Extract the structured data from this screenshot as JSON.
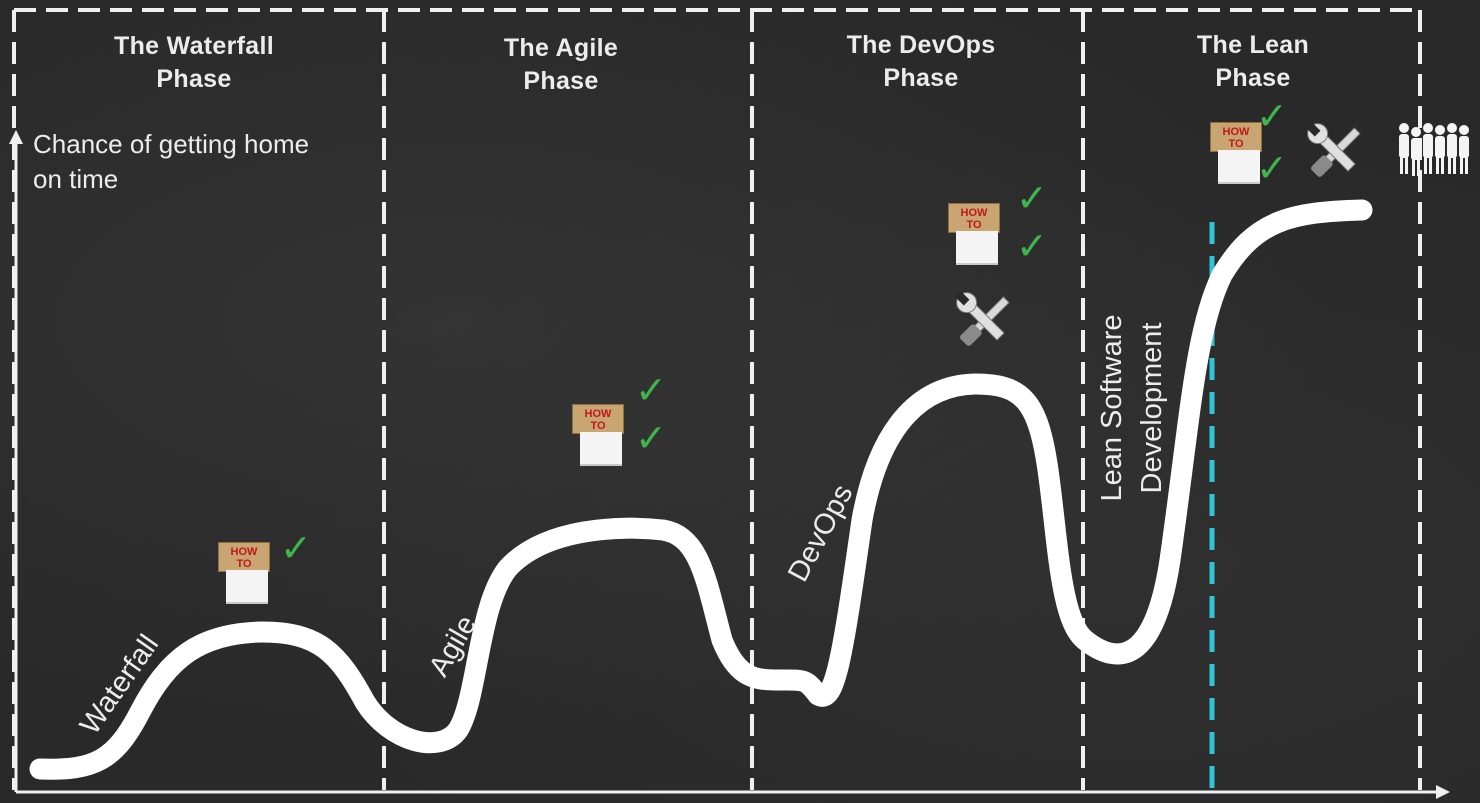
{
  "phases": [
    {
      "title_line1": "The Waterfall",
      "title_line2": "Phase"
    },
    {
      "title_line1": "The Agile",
      "title_line2": "Phase"
    },
    {
      "title_line1": "The DevOps",
      "title_line2": "Phase"
    },
    {
      "title_line1": "The Lean",
      "title_line2": "Phase"
    }
  ],
  "y_axis_label": "Chance of getting home on time",
  "curve_labels": {
    "waterfall": "Waterfall",
    "agile": "Agile",
    "devops": "DevOps",
    "lean_line1": "Lean Software",
    "lean_line2": "Development"
  },
  "howto_badge": {
    "line1": "HOW",
    "line2": "TO"
  },
  "check_glyph": "✓",
  "colors": {
    "background": "#292929",
    "chalk": "#ffffff",
    "check": "#3fb54c",
    "cyan_marker": "#2fc4d6",
    "howto_tag": "#c9a571",
    "howto_text": "#c0171d"
  },
  "icons": [
    "howto-badge-icon",
    "checkmark-icon",
    "tools-icon",
    "people-crowd-icon"
  ]
}
